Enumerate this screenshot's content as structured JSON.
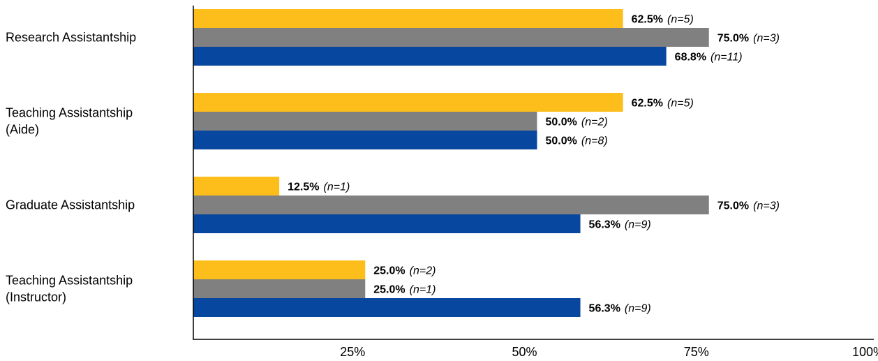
{
  "chart_data": {
    "type": "bar",
    "orientation": "horizontal",
    "categories": [
      [
        "Research Assistantship"
      ],
      [
        "Teaching Assistantship",
        "(Aide)"
      ],
      [
        "Graduate Assistantship"
      ],
      [
        "Teaching Assistantship",
        "(Instructor)"
      ]
    ],
    "series": [
      {
        "color": "#FDBD1A",
        "values": [
          62.5,
          62.5,
          12.5,
          25.0
        ],
        "pct_labels": [
          "62.5%",
          "62.5%",
          "12.5%",
          "25.0%"
        ],
        "n_labels": [
          "(n=5)",
          "(n=5)",
          "(n=1)",
          "(n=2)"
        ]
      },
      {
        "color": "#808080",
        "values": [
          75.0,
          50.0,
          75.0,
          25.0
        ],
        "pct_labels": [
          "75.0%",
          "50.0%",
          "75.0%",
          "25.0%"
        ],
        "n_labels": [
          "(n=3)",
          "(n=2)",
          "(n=3)",
          "(n=1)"
        ]
      },
      {
        "color": "#0747A0",
        "values": [
          68.8,
          50.0,
          56.3,
          56.3
        ],
        "pct_labels": [
          "68.8%",
          "50.0%",
          "56.3%",
          "56.3%"
        ],
        "n_labels": [
          "(n=11)",
          "(n=8)",
          "(n=9)",
          "(n=9)"
        ]
      }
    ],
    "xlim": [
      0,
      100
    ],
    "xticks": [
      25,
      50,
      75,
      100
    ],
    "xtick_labels": [
      "25%",
      "50%",
      "75%",
      "100%"
    ],
    "grid": false,
    "legend": "none"
  }
}
